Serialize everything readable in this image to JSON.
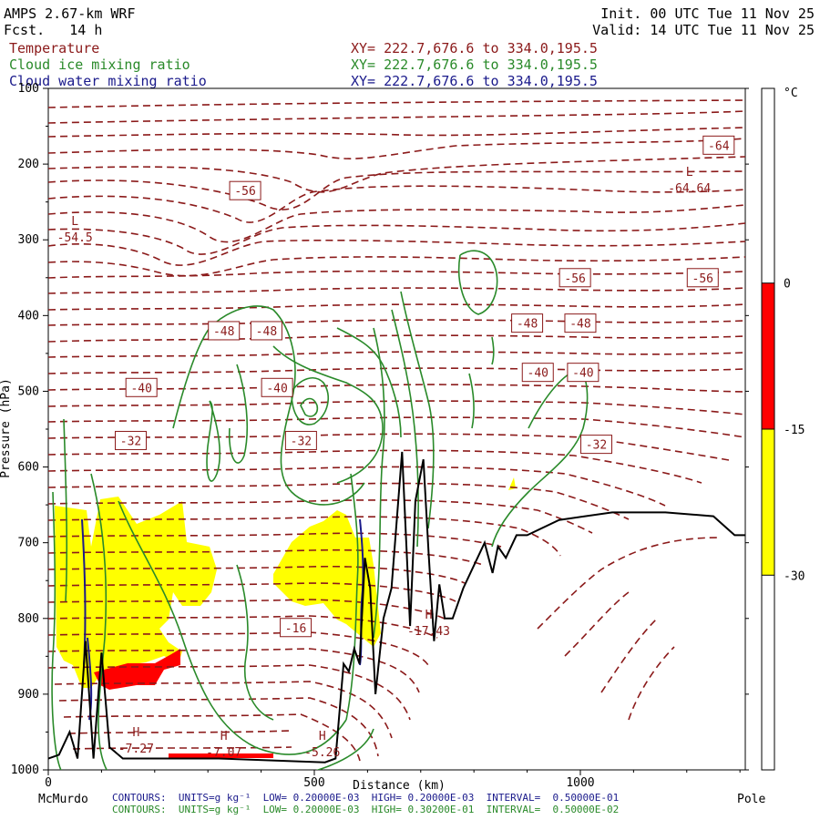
{
  "header": {
    "model": "AMPS 2.67-km WRF",
    "forecast": "Fcst.   14 h",
    "init": "Init. 00 UTC Tue 11 Nov 25",
    "valid": "Valid: 14 UTC Tue 11 Nov 25",
    "fields": [
      {
        "name": "Temperature",
        "xy": "XY= 222.7,676.6 to 334.0,195.5",
        "color": "#8b1a1a"
      },
      {
        "name": "Cloud ice mixing ratio",
        "xy": "XY= 222.7,676.6 to 334.0,195.5",
        "color": "#2a8a2a"
      },
      {
        "name": "Cloud water mixing ratio",
        "xy": "XY= 222.7,676.6 to 334.0,195.5",
        "color": "#1a1a8b"
      }
    ]
  },
  "footer": {
    "left_label": "McMurdo",
    "right_label": "Pole",
    "contours": [
      {
        "text": "CONTOURS:  UNITS=g kg⁻¹  LOW= 0.20000E-03  HIGH= 0.20000E-03  INTERVAL=  0.50000E-01",
        "color": "#1a1a8b"
      },
      {
        "text": "CONTOURS:  UNITS=g kg⁻¹  LOW= 0.20000E-03  HIGH= 0.30200E-01  INTERVAL=  0.50000E-02",
        "color": "#2a8a2a"
      }
    ]
  },
  "chart_data": {
    "type": "cross-section",
    "xlabel": "Distance (km)",
    "ylabel": "Pressure (hPa)",
    "xlim": [
      0,
      1310
    ],
    "ylim": [
      1000,
      100
    ],
    "y_ticks": [
      100,
      200,
      300,
      400,
      500,
      600,
      700,
      800,
      900,
      1000
    ],
    "x_ticks": [
      0,
      500,
      1000
    ],
    "x_tick_labels": [
      "0",
      "500",
      "1000"
    ],
    "y_tick_labels": [
      "100",
      "200",
      "300",
      "400",
      "500",
      "600",
      "700",
      "800",
      "900",
      "1000"
    ],
    "colorbar": {
      "unit": "°C",
      "boundaries": [
        0,
        -15,
        -30
      ],
      "labels": [
        "0",
        "-15",
        "-30"
      ],
      "segments": [
        {
          "from": 20,
          "to": 0,
          "color": "#ffffff"
        },
        {
          "from": 0,
          "to": -15,
          "color": "#ff0000"
        },
        {
          "from": -15,
          "to": -30,
          "color": "#ffff00"
        },
        {
          "from": -30,
          "to": -50,
          "color": "#ffffff"
        }
      ]
    },
    "temperature_labels": [
      {
        "text": "-64",
        "x": 1260,
        "p": 175
      },
      {
        "text": "-56",
        "x": 370,
        "p": 235
      },
      {
        "text": "-56",
        "x": 990,
        "p": 350
      },
      {
        "text": "-56",
        "x": 1230,
        "p": 350
      },
      {
        "text": "-48",
        "x": 330,
        "p": 420
      },
      {
        "text": "-48",
        "x": 410,
        "p": 420
      },
      {
        "text": "-48",
        "x": 900,
        "p": 410
      },
      {
        "text": "-48",
        "x": 1000,
        "p": 410
      },
      {
        "text": "-40",
        "x": 175,
        "p": 495
      },
      {
        "text": "-40",
        "x": 430,
        "p": 495
      },
      {
        "text": "-40",
        "x": 920,
        "p": 475
      },
      {
        "text": "-40",
        "x": 1005,
        "p": 475
      },
      {
        "text": "-32",
        "x": 155,
        "p": 565
      },
      {
        "text": "-32",
        "x": 475,
        "p": 565
      },
      {
        "text": "-32",
        "x": 1030,
        "p": 570
      },
      {
        "text": "-16",
        "x": 465,
        "p": 812
      }
    ],
    "extrema": [
      {
        "type": "L",
        "value": "-54.5",
        "x": 50,
        "p": 290
      },
      {
        "type": "L",
        "value": "-64.64",
        "x": 1205,
        "p": 225
      },
      {
        "type": "H",
        "value": "-17.43",
        "x": 715,
        "p": 810
      },
      {
        "type": "H",
        "value": "-7.27",
        "x": 165,
        "p": 965
      },
      {
        "type": "H",
        "value": "-7.07",
        "x": 330,
        "p": 970
      },
      {
        "type": "H",
        "value": "-5.26",
        "x": 515,
        "p": 970
      }
    ],
    "terrain": [
      [
        0,
        985
      ],
      [
        20,
        980
      ],
      [
        40,
        950
      ],
      [
        55,
        985
      ],
      [
        70,
        830
      ],
      [
        85,
        985
      ],
      [
        100,
        845
      ],
      [
        115,
        970
      ],
      [
        140,
        985
      ],
      [
        320,
        985
      ],
      [
        520,
        990
      ],
      [
        540,
        985
      ],
      [
        555,
        860
      ],
      [
        565,
        870
      ],
      [
        575,
        840
      ],
      [
        585,
        860
      ],
      [
        595,
        720
      ],
      [
        605,
        760
      ],
      [
        615,
        900
      ],
      [
        630,
        800
      ],
      [
        645,
        760
      ],
      [
        665,
        580
      ],
      [
        680,
        810
      ],
      [
        690,
        645
      ],
      [
        705,
        590
      ],
      [
        715,
        715
      ],
      [
        725,
        830
      ],
      [
        735,
        755
      ],
      [
        745,
        800
      ],
      [
        760,
        800
      ],
      [
        780,
        760
      ],
      [
        800,
        730
      ],
      [
        820,
        700
      ],
      [
        835,
        740
      ],
      [
        845,
        705
      ],
      [
        860,
        720
      ],
      [
        880,
        690
      ],
      [
        900,
        690
      ],
      [
        960,
        670
      ],
      [
        1060,
        660
      ],
      [
        1160,
        660
      ],
      [
        1250,
        665
      ],
      [
        1290,
        690
      ],
      [
        1310,
        690
      ]
    ]
  }
}
